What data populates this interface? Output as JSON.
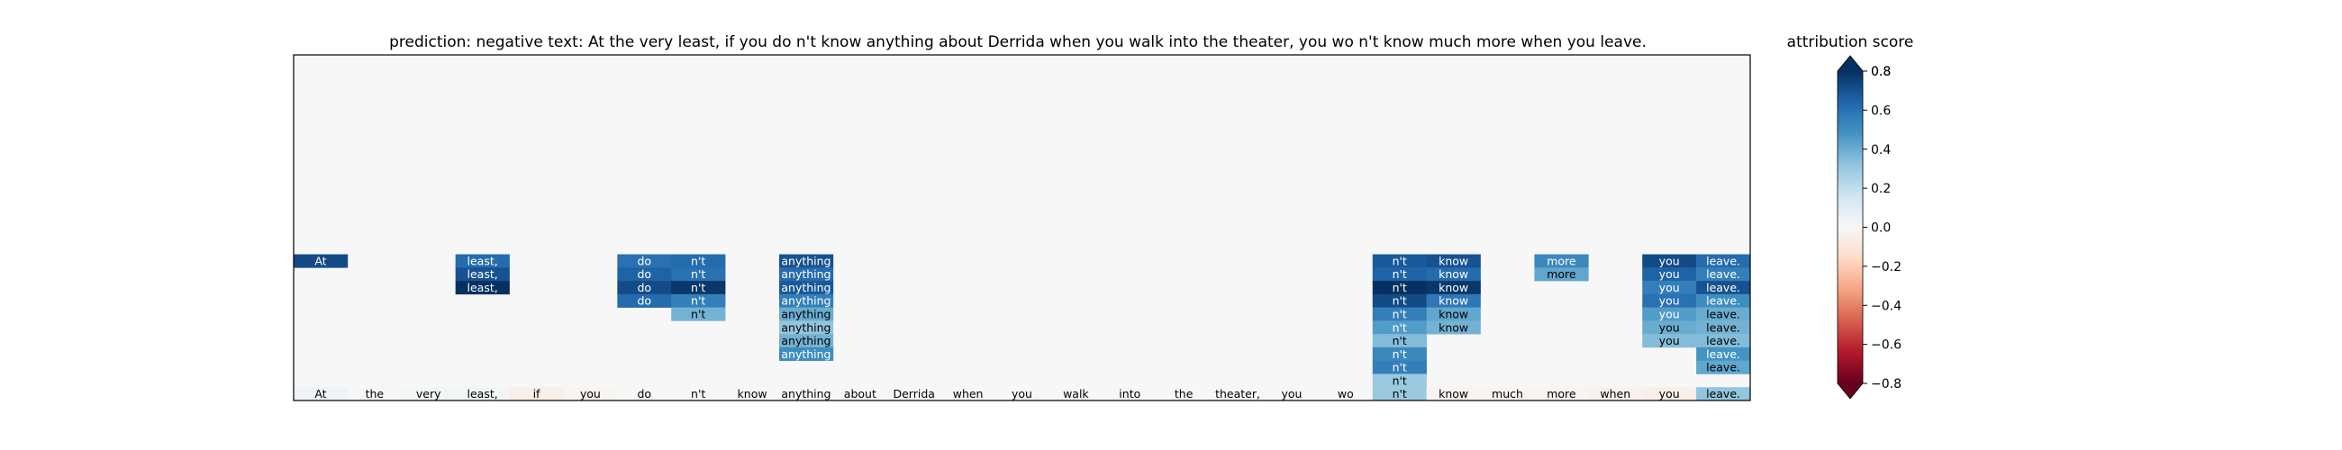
{
  "chart_data": {
    "type": "heatmap",
    "title": "prediction:  negative     text:  At the very least, if you do n't know anything about Derrida when you walk into the theater, you wo n't know much more when you leave.",
    "tokens": [
      "At",
      "the",
      "very",
      "least,",
      "if",
      "you",
      "do",
      "n't",
      "know",
      "anything",
      "about",
      "Derrida",
      "when",
      "you",
      "walk",
      "into",
      "the",
      "theater,",
      "you",
      "wo",
      "n't",
      "know",
      "much",
      "more",
      "when",
      "you",
      "leave."
    ],
    "bottom_row_scores": [
      0.04,
      0.01,
      0.02,
      0.02,
      -0.05,
      -0.02,
      0.0,
      0.0,
      0.0,
      0.0,
      0.0,
      0.0,
      0.0,
      0.0,
      0.0,
      0.0,
      0.0,
      0.0,
      0.0,
      0.0,
      0.3,
      -0.02,
      -0.02,
      -0.02,
      -0.03,
      -0.05,
      0.32
    ],
    "column_stacks": [
      {
        "token_index": 0,
        "scores": [
          0.72
        ]
      },
      {
        "token_index": 3,
        "scores": [
          0.62,
          0.7,
          0.8
        ]
      },
      {
        "token_index": 6,
        "scores": [
          0.6,
          0.65,
          0.72,
          0.62
        ]
      },
      {
        "token_index": 7,
        "scores": [
          0.62,
          0.6,
          0.78,
          0.55,
          0.38
        ]
      },
      {
        "token_index": 9,
        "scores": [
          0.7,
          0.62,
          0.68,
          0.55,
          0.4,
          0.32,
          0.38,
          0.5
        ]
      },
      {
        "token_index": 20,
        "scores": [
          0.68,
          0.65,
          0.8,
          0.72,
          0.55,
          0.45,
          0.35,
          0.52,
          0.55,
          0.3
        ]
      },
      {
        "token_index": 21,
        "scores": [
          0.7,
          0.62,
          0.78,
          0.58,
          0.42,
          0.38
        ]
      },
      {
        "token_index": 23,
        "scores": [
          0.52,
          0.42
        ]
      },
      {
        "token_index": 25,
        "scores": [
          0.72,
          0.65,
          0.55,
          0.6,
          0.45,
          0.4,
          0.35
        ]
      },
      {
        "token_index": 26,
        "scores": [
          0.62,
          0.55,
          0.7,
          0.5,
          0.4,
          0.38,
          0.35,
          0.48,
          0.42
        ]
      }
    ],
    "rows": 26,
    "background_score": 0.0,
    "colorbar": {
      "label": "attribution score",
      "min": -0.8,
      "max": 0.8,
      "ticks": [
        -0.6,
        -0.4,
        -0.2,
        0.0,
        0.2,
        0.4,
        0.6,
        0.8
      ],
      "tick_labels": [
        "−0.6",
        "−0.4",
        "−0.2",
        "0.0",
        "0.2",
        "0.4",
        "0.6",
        "0.8"
      ],
      "end_labels": {
        "top": "0.8",
        "bottom": "−0.8"
      },
      "colormap": "RdBu",
      "extend": "both"
    }
  }
}
